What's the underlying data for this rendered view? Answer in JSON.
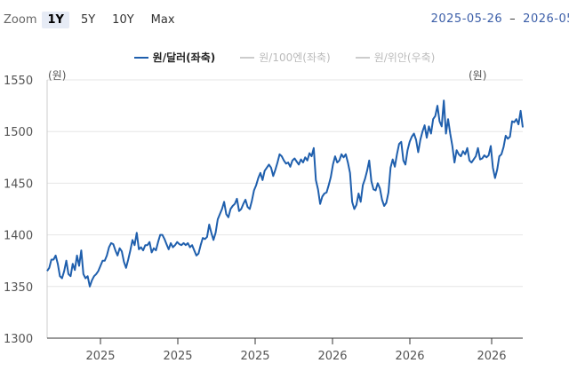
{
  "zoom": {
    "label": "Zoom",
    "buttons": [
      "1Y",
      "5Y",
      "10Y",
      "Max"
    ],
    "active": "1Y"
  },
  "date_range": {
    "from": "2025-05-26",
    "separator": "–",
    "to": "2026-05"
  },
  "colors": {
    "main_series": "#1f5fad",
    "inactive_series": "#cccccc",
    "grid": "#e6e6e6",
    "axis_text": "#555555"
  },
  "chart_data": {
    "type": "line",
    "title": "",
    "left_axis_unit": "(원)",
    "right_axis_unit": "(원)",
    "ylim": [
      1300,
      1550
    ],
    "yticks": [
      1300,
      1350,
      1400,
      1450,
      1500,
      1550
    ],
    "xtick_labels": [
      "2025",
      "2025",
      "2025",
      "2026",
      "2026",
      "2026"
    ],
    "legend_position": "top-center",
    "series": [
      {
        "name": "원/달러(좌축)",
        "active": true,
        "values": [
          1365,
          1368,
          1376,
          1376,
          1380,
          1372,
          1360,
          1358,
          1365,
          1375,
          1362,
          1360,
          1372,
          1366,
          1380,
          1370,
          1385,
          1362,
          1358,
          1360,
          1350,
          1356,
          1360,
          1362,
          1365,
          1370,
          1375,
          1375,
          1380,
          1388,
          1392,
          1391,
          1385,
          1380,
          1387,
          1384,
          1374,
          1368,
          1376,
          1385,
          1395,
          1390,
          1402,
          1386,
          1388,
          1385,
          1390,
          1390,
          1393,
          1383,
          1387,
          1385,
          1393,
          1400,
          1400,
          1396,
          1391,
          1386,
          1392,
          1388,
          1390,
          1393,
          1391,
          1390,
          1392,
          1390,
          1392,
          1388,
          1390,
          1385,
          1380,
          1382,
          1390,
          1397,
          1396,
          1398,
          1410,
          1402,
          1395,
          1402,
          1415,
          1420,
          1425,
          1432,
          1420,
          1417,
          1425,
          1428,
          1430,
          1435,
          1423,
          1425,
          1430,
          1434,
          1427,
          1425,
          1433,
          1443,
          1448,
          1455,
          1460,
          1453,
          1462,
          1465,
          1468,
          1465,
          1457,
          1463,
          1470,
          1478,
          1476,
          1472,
          1469,
          1470,
          1466,
          1472,
          1474,
          1471,
          1468,
          1473,
          1470,
          1475,
          1472,
          1479,
          1476,
          1484,
          1453,
          1444,
          1430,
          1437,
          1440,
          1441,
          1448,
          1456,
          1468,
          1476,
          1470,
          1472,
          1478,
          1475,
          1478,
          1470,
          1460,
          1432,
          1425,
          1429,
          1440,
          1432,
          1448,
          1454,
          1462,
          1472,
          1452,
          1444,
          1443,
          1450,
          1445,
          1434,
          1428,
          1431,
          1441,
          1465,
          1473,
          1466,
          1478,
          1488,
          1490,
          1472,
          1468,
          1482,
          1490,
          1495,
          1498,
          1492,
          1480,
          1492,
          1500,
          1506,
          1494,
          1505,
          1498,
          1512,
          1515,
          1525,
          1510,
          1505,
          1530,
          1498,
          1512,
          1498,
          1486,
          1470,
          1482,
          1478,
          1476,
          1481,
          1478,
          1484,
          1472,
          1470,
          1473,
          1476,
          1484,
          1473,
          1474,
          1477,
          1475,
          1477,
          1486,
          1465,
          1455,
          1463,
          1476,
          1478,
          1485,
          1496,
          1493,
          1495,
          1510,
          1509,
          1512,
          1507,
          1520,
          1504
        ]
      },
      {
        "name": "원/100엔(좌축)",
        "active": false
      },
      {
        "name": "원/위안(우축)",
        "active": false
      }
    ]
  }
}
